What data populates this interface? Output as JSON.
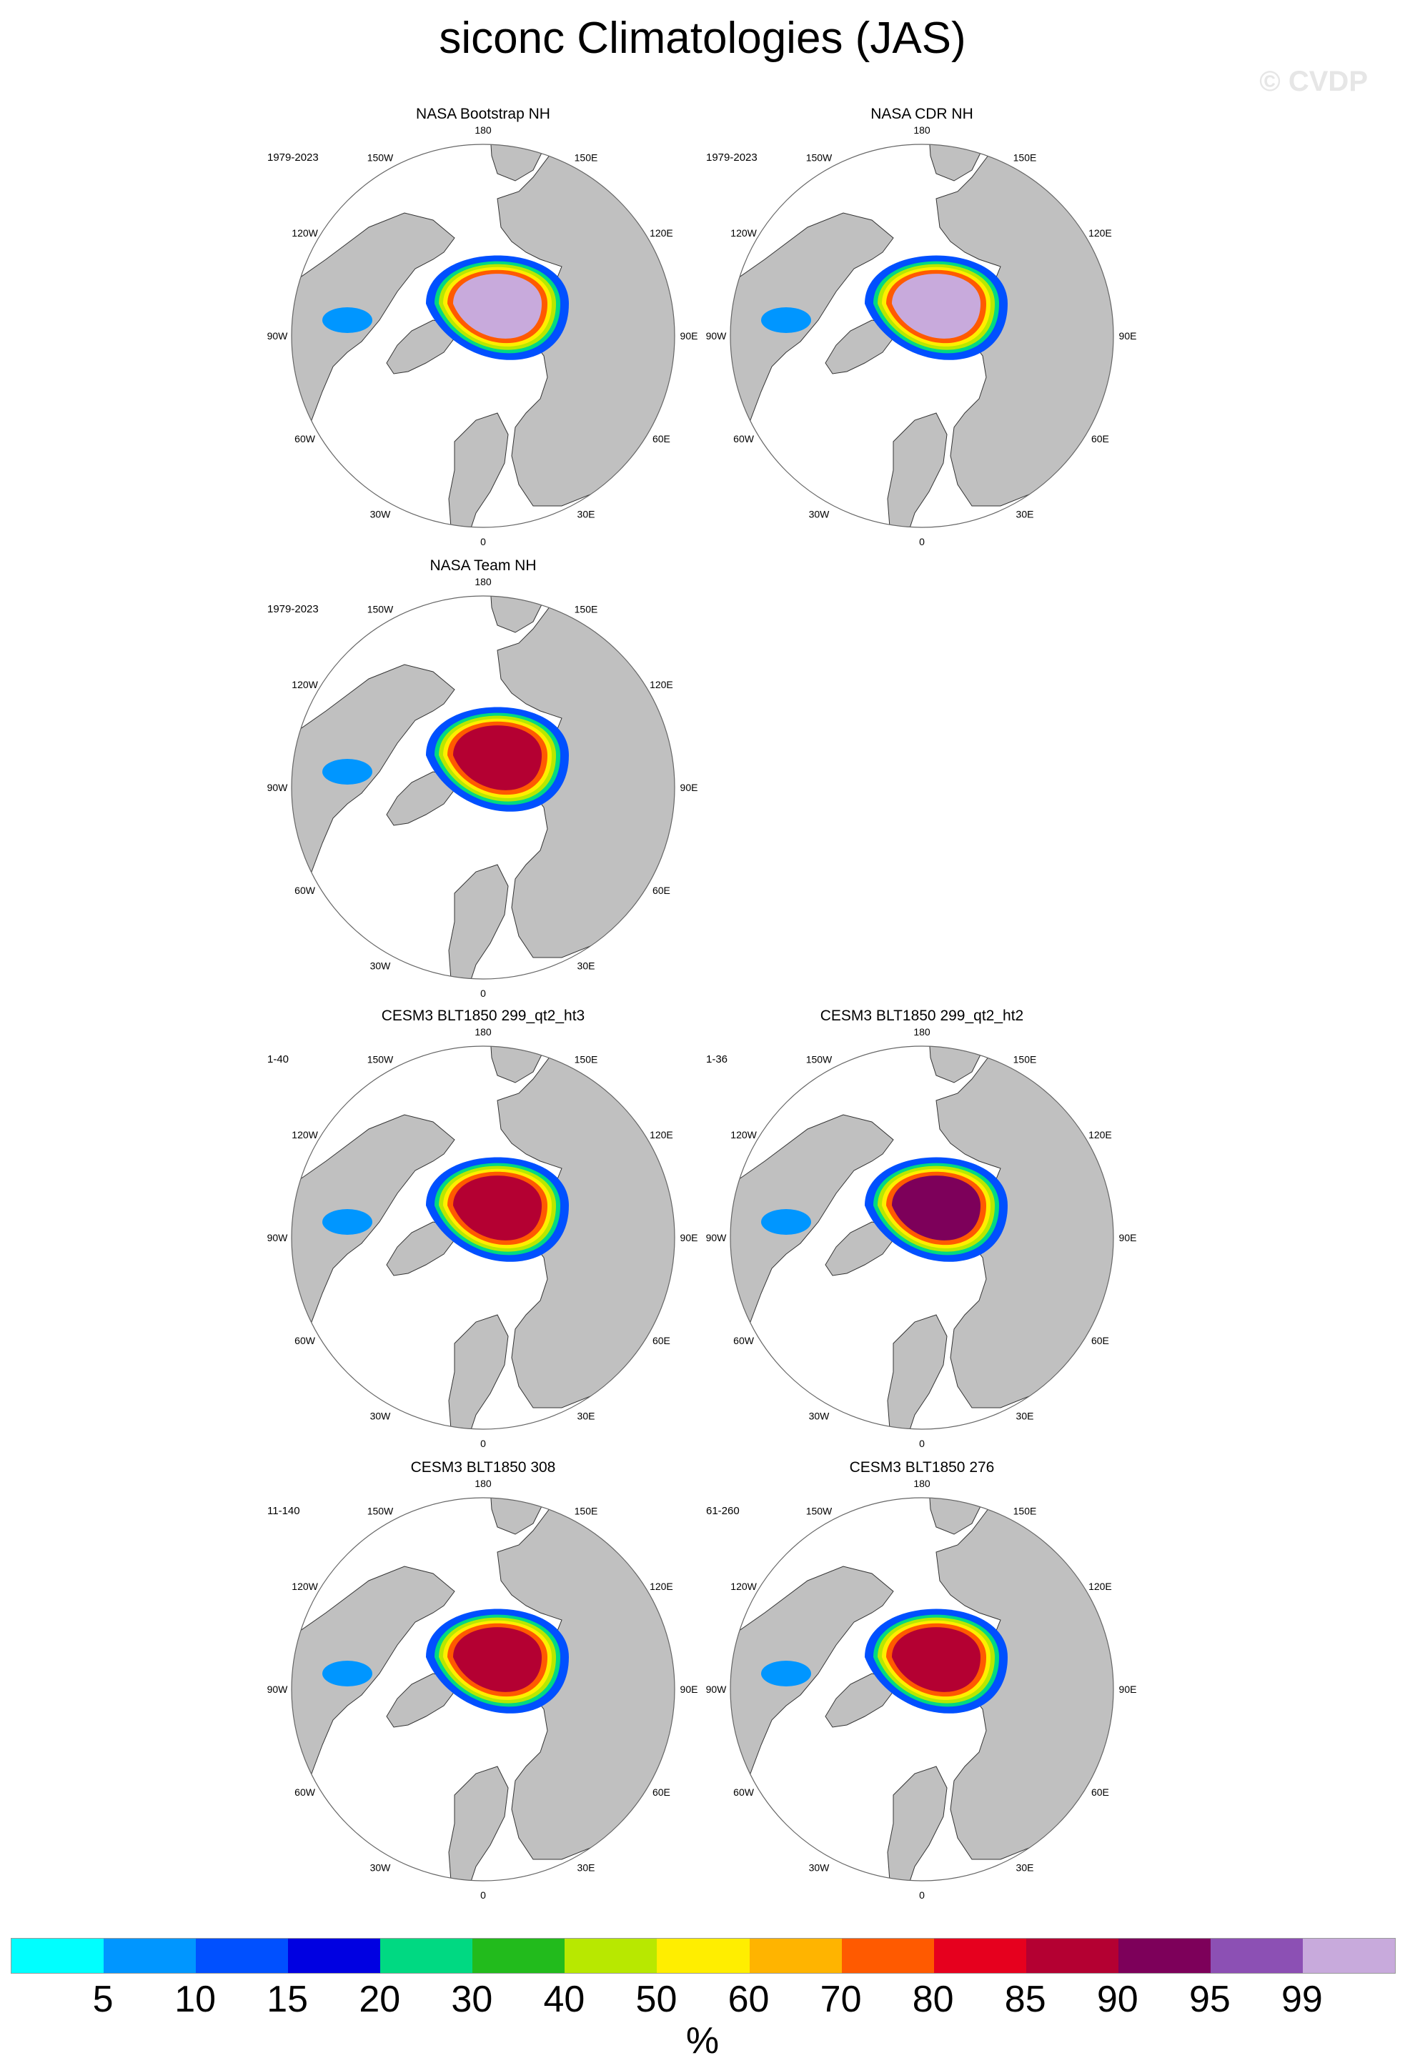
{
  "figure": {
    "title": "siconc Climatologies (JAS)",
    "watermark": "© CVDP",
    "units": "%"
  },
  "longitude_labels": [
    "180",
    "150E",
    "120E",
    "90E",
    "60E",
    "30E",
    "0",
    "30W",
    "60W",
    "90W",
    "120W",
    "150W"
  ],
  "panels": [
    {
      "id": "p1",
      "title": "NASA Bootstrap NH",
      "period": "1979-2023",
      "center_level": "99"
    },
    {
      "id": "p2",
      "title": "NASA CDR NH",
      "period": "1979-2023",
      "center_level": "99"
    },
    {
      "id": "p3",
      "title": "NASA Team NH",
      "period": "1979-2023",
      "center_level": "85"
    },
    {
      "id": "p4",
      "title": "CESM3 BLT1850 299_qt2_ht3",
      "period": "1-40",
      "center_level": "85"
    },
    {
      "id": "p5",
      "title": "CESM3 BLT1850 299_qt2_ht2",
      "period": "1-36",
      "center_level": "90"
    },
    {
      "id": "p6",
      "title": "CESM3 BLT1850 308",
      "period": "11-140",
      "center_level": "85"
    },
    {
      "id": "p7",
      "title": "CESM3 BLT1850 276",
      "period": "61-260",
      "center_level": "85"
    }
  ],
  "colorbar": {
    "colors": [
      "#00ffff",
      "#0096ff",
      "#0050ff",
      "#0000e1",
      "#00d982",
      "#22bb1c",
      "#b8e800",
      "#ffee00",
      "#ffb400",
      "#ff5a00",
      "#e6001e",
      "#b40032",
      "#7d005a",
      "#8c50b4",
      "#c8aadc"
    ],
    "labels": [
      "5",
      "10",
      "15",
      "20",
      "30",
      "40",
      "50",
      "60",
      "70",
      "80",
      "85",
      "90",
      "95",
      "99"
    ]
  }
}
